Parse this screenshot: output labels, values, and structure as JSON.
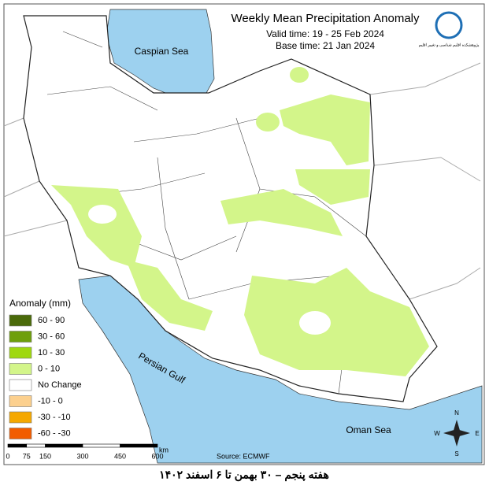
{
  "header": {
    "title": "Weekly Mean Precipitation Anomaly",
    "valid_time": "Valid time:  19 - 25 Feb 2024",
    "base_time": "Base time: 21 Jan 2024",
    "logo_text": "پژوهشکده اقلیم شناسی و تغییر اقلیم"
  },
  "map": {
    "labels": [
      "Caspian Sea",
      "Persian Gulf",
      "Oman Sea"
    ]
  },
  "legend": {
    "title": "Anomaly (mm)",
    "items": [
      {
        "label": "60 - 90",
        "color": "#4a6a0a"
      },
      {
        "label": "30 - 60",
        "color": "#6e9f0c"
      },
      {
        "label": "10 - 30",
        "color": "#9fd80f"
      },
      {
        "label": "0 - 10",
        "color": "#d3f58a"
      },
      {
        "label": "No Change",
        "color": "#ffffff"
      },
      {
        "label": "-10 - 0",
        "color": "#fcd08e"
      },
      {
        "label": "-30 - -10",
        "color": "#f5a800"
      },
      {
        "label": "-60 - -30",
        "color": "#f25c00"
      }
    ]
  },
  "scale_bar": {
    "labels": [
      "0",
      "75",
      "150",
      "300",
      "450",
      "600"
    ],
    "unit": "km"
  },
  "compass": {
    "n": "N",
    "e": "E",
    "s": "S",
    "w": "W"
  },
  "source": "Source: ECMWF",
  "caption": "هفته پنجم – ۳۰ بهمن تا ۶ اسفند ۱۴۰۲"
}
